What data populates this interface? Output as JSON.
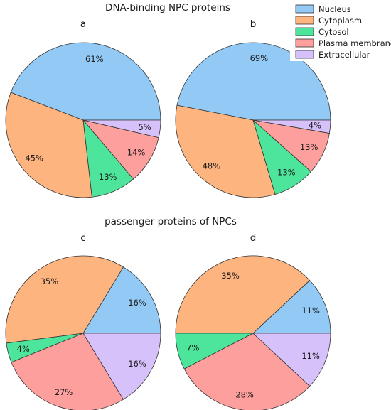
{
  "titles": {
    "top": "DNA-binding NPC proteins",
    "bottom": "passenger proteins of NPCs"
  },
  "legend": {
    "items": [
      {
        "label": "Nucleus",
        "color": "#92c9f5"
      },
      {
        "label": "Cytoplasm",
        "color": "#fdb47f"
      },
      {
        "label": "Cytosol",
        "color": "#4de49b"
      },
      {
        "label": "Plasma membrane",
        "color": "#fd9f9c"
      },
      {
        "label": "Extracellular",
        "color": "#d6c1fb"
      }
    ]
  },
  "chart_data": [
    {
      "type": "pie",
      "panel": "a",
      "section": "DNA-binding NPC proteins",
      "categories": [
        "Nucleus",
        "Cytoplasm",
        "Cytosol",
        "Plasma membrane",
        "Extracellular"
      ],
      "values": [
        61,
        45,
        13,
        14,
        5
      ],
      "labels": [
        "61%",
        "45%",
        "13%",
        "14%",
        "5%"
      ]
    },
    {
      "type": "pie",
      "panel": "b",
      "section": "DNA-binding NPC proteins",
      "categories": [
        "Nucleus",
        "Cytoplasm",
        "Cytosol",
        "Plasma membrane",
        "Extracellular"
      ],
      "values": [
        69,
        48,
        13,
        13,
        4
      ],
      "labels": [
        "69%",
        "48%",
        "13%",
        "13%",
        "4%"
      ]
    },
    {
      "type": "pie",
      "panel": "c",
      "section": "passenger proteins of NPCs",
      "categories": [
        "Nucleus",
        "Cytoplasm",
        "Cytosol",
        "Plasma membrane",
        "Extracellular"
      ],
      "values": [
        16,
        35,
        4,
        27,
        16
      ],
      "labels": [
        "16%",
        "35%",
        "4%",
        "27%",
        "16%"
      ]
    },
    {
      "type": "pie",
      "panel": "d",
      "section": "passenger proteins of NPCs",
      "categories": [
        "Nucleus",
        "Cytoplasm",
        "Cytosol",
        "Plasma membrane",
        "Extracellular"
      ],
      "values": [
        11,
        35,
        7,
        28,
        11
      ],
      "labels": [
        "11%",
        "35%",
        "7%",
        "28%",
        "11%"
      ]
    }
  ]
}
